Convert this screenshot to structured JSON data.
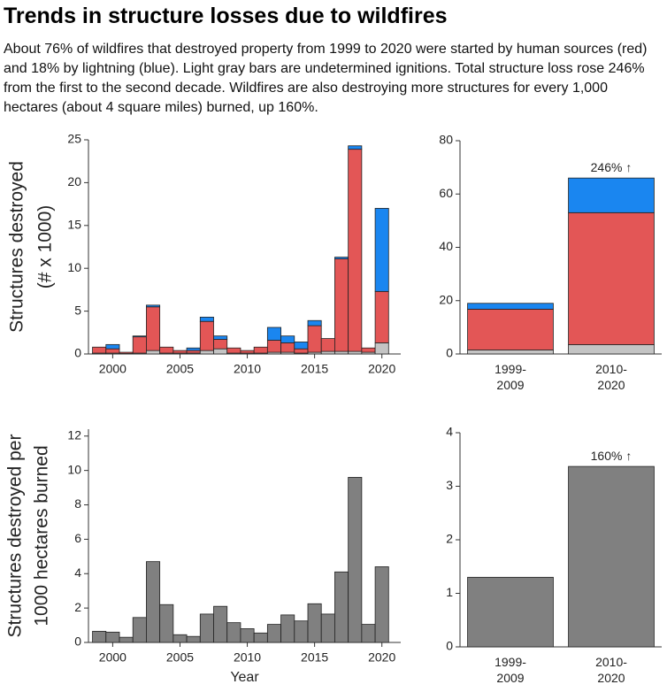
{
  "title": "Trends in structure losses due to wildfires",
  "subtitle": "About 76% of wildfires that destroyed property from 1999 to 2020 were started by human sources (red) and 18% by lightning (blue). Light gray bars are undetermined ignitions. Total structure loss rose 246% from the first to the second decade. Wildfires are also destroying more structures for every 1,000 hectares (about 4 square miles) burned, up 160%.",
  "chart_data": [
    {
      "type": "bar",
      "x": [
        1999,
        2000,
        2001,
        2002,
        2003,
        2004,
        2005,
        2006,
        2007,
        2008,
        2009,
        2010,
        2011,
        2012,
        2013,
        2014,
        2015,
        2016,
        2017,
        2018,
        2019,
        2020
      ],
      "series": [
        {
          "color": "#c4c4c4",
          "values": [
            0.1,
            0.1,
            0.05,
            0.1,
            0.4,
            0.1,
            0.1,
            0.1,
            0.4,
            0.6,
            0.1,
            0.1,
            0.1,
            0.2,
            0.2,
            0.1,
            0.2,
            0.3,
            0.3,
            0.3,
            0.2,
            1.3
          ]
        },
        {
          "color": "#e35656",
          "values": [
            0.7,
            0.5,
            0.15,
            1.9,
            5.1,
            0.7,
            0.3,
            0.3,
            3.4,
            1.1,
            0.6,
            0.3,
            0.7,
            1.4,
            1.1,
            0.5,
            3.1,
            1.5,
            10.8,
            23.6,
            0.5,
            6.0
          ]
        },
        {
          "color": "#1a86f0",
          "values": [
            0,
            0.5,
            0,
            0.1,
            0.2,
            0,
            0,
            0.3,
            0.5,
            0.4,
            0,
            0,
            0,
            1.5,
            0.8,
            0.8,
            0.6,
            0,
            0.2,
            0.4,
            0,
            9.7
          ]
        }
      ],
      "xlim": [
        1998.2,
        2021.4
      ],
      "xticks": [
        2000,
        2005,
        2010,
        2015,
        2020
      ],
      "ylim": [
        0,
        25
      ],
      "yticks": [
        0,
        5,
        10,
        15,
        20,
        25
      ],
      "ylabel": [
        "Structures destroyed",
        "(# x 1000)"
      ]
    },
    {
      "type": "bar",
      "categories": [
        "1999-2009",
        "2010-2020"
      ],
      "series": [
        {
          "color": "#c4c4c4",
          "values": [
            1.5,
            3.5
          ]
        },
        {
          "color": "#e35656",
          "values": [
            15.3,
            49.5
          ]
        },
        {
          "color": "#1a86f0",
          "values": [
            2.2,
            13
          ]
        }
      ],
      "ylim": [
        0,
        80
      ],
      "yticks": [
        0,
        20,
        40,
        60,
        80
      ],
      "annotation": "246% ↑"
    },
    {
      "type": "bar",
      "x": [
        1999,
        2000,
        2001,
        2002,
        2003,
        2004,
        2005,
        2006,
        2007,
        2008,
        2009,
        2010,
        2011,
        2012,
        2013,
        2014,
        2015,
        2016,
        2017,
        2018,
        2019,
        2020
      ],
      "values": [
        0.65,
        0.6,
        0.3,
        1.45,
        4.7,
        2.2,
        0.45,
        0.35,
        1.65,
        2.1,
        1.15,
        0.8,
        0.55,
        1.05,
        1.6,
        1.25,
        2.25,
        1.65,
        4.1,
        9.6,
        1.05,
        4.4
      ],
      "color": "#808080",
      "xlim": [
        1998.2,
        2021.4
      ],
      "xticks": [
        2000,
        2005,
        2010,
        2015,
        2020
      ],
      "ylim": [
        0,
        12.4
      ],
      "yticks": [
        0,
        2,
        4,
        6,
        8,
        10,
        12
      ],
      "xlabel": "Year",
      "ylabel": [
        "Structures destroyed per",
        "1000 hectares burned"
      ]
    },
    {
      "type": "bar",
      "categories": [
        "1999-2009",
        "2010-2020"
      ],
      "values": [
        1.3,
        3.37
      ],
      "color": "#808080",
      "ylim": [
        0,
        4
      ],
      "yticks": [
        0,
        1,
        2,
        3,
        4
      ],
      "annotation": "160% ↑"
    }
  ]
}
